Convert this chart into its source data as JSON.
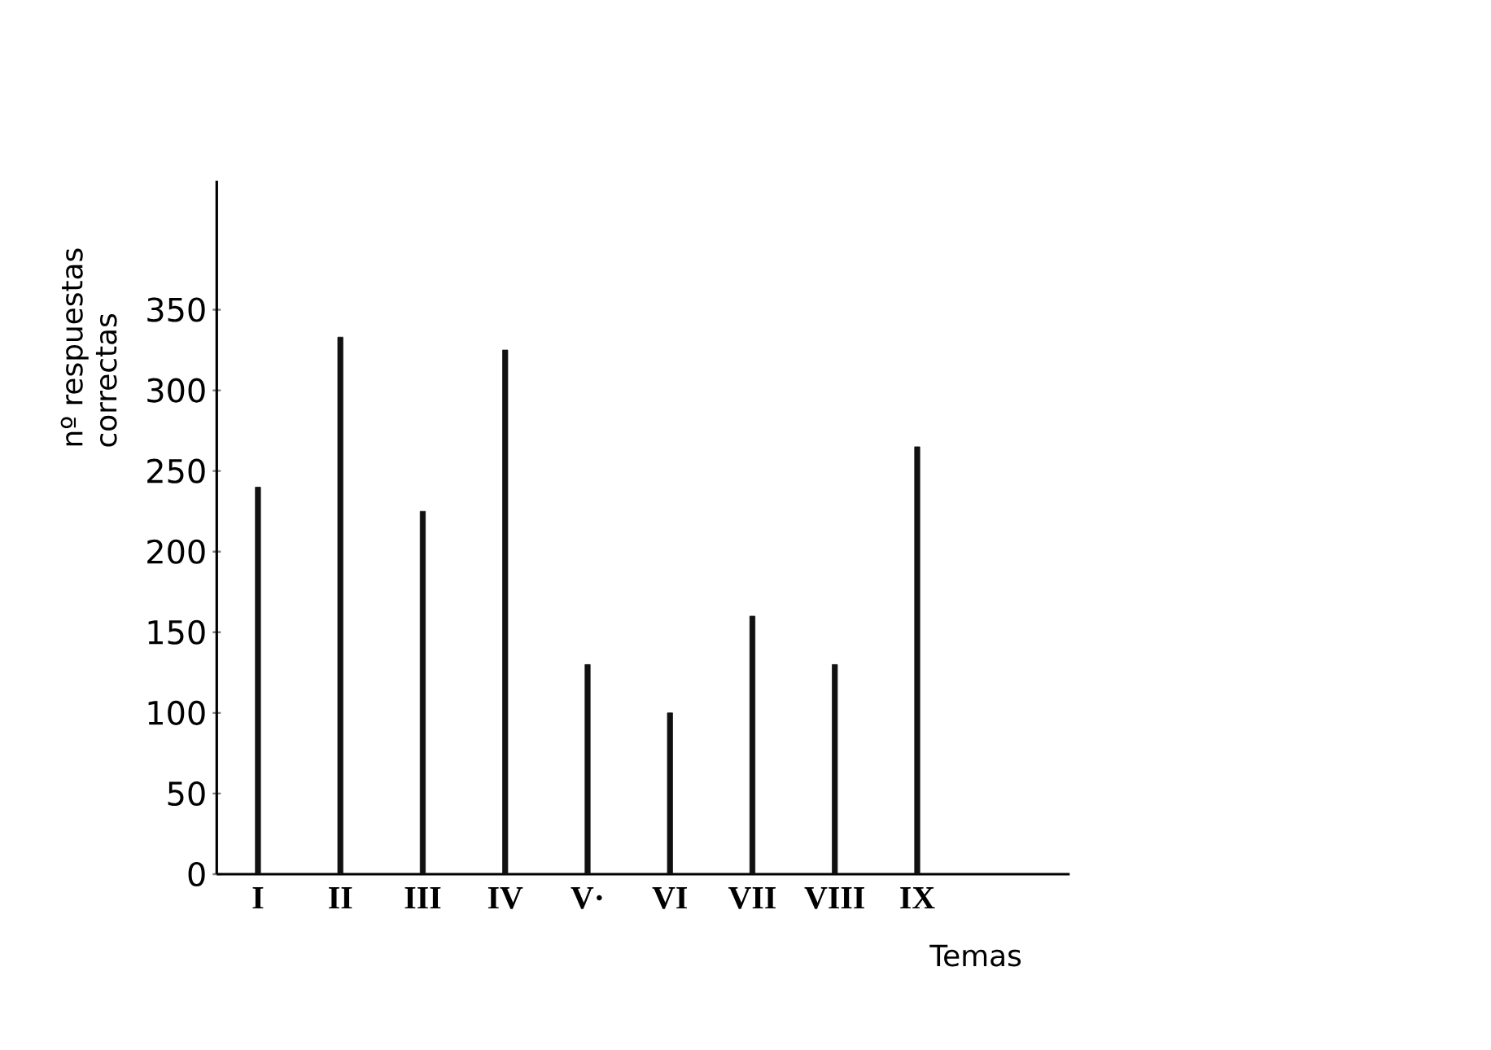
{
  "chart_data": {
    "type": "bar",
    "xlabel": "Temas",
    "ylabel": "nº respuestas correctas",
    "categories": [
      "I",
      "II",
      "III",
      "IV",
      "V·",
      "VI",
      "VII",
      "VIII",
      "IX"
    ],
    "values": [
      240,
      333,
      225,
      325,
      130,
      100,
      160,
      130,
      265
    ],
    "color": "#111111",
    "ylim": [
      0,
      430
    ],
    "yticks": [
      0,
      50,
      100,
      150,
      200,
      250,
      300,
      350
    ],
    "grid": false
  }
}
